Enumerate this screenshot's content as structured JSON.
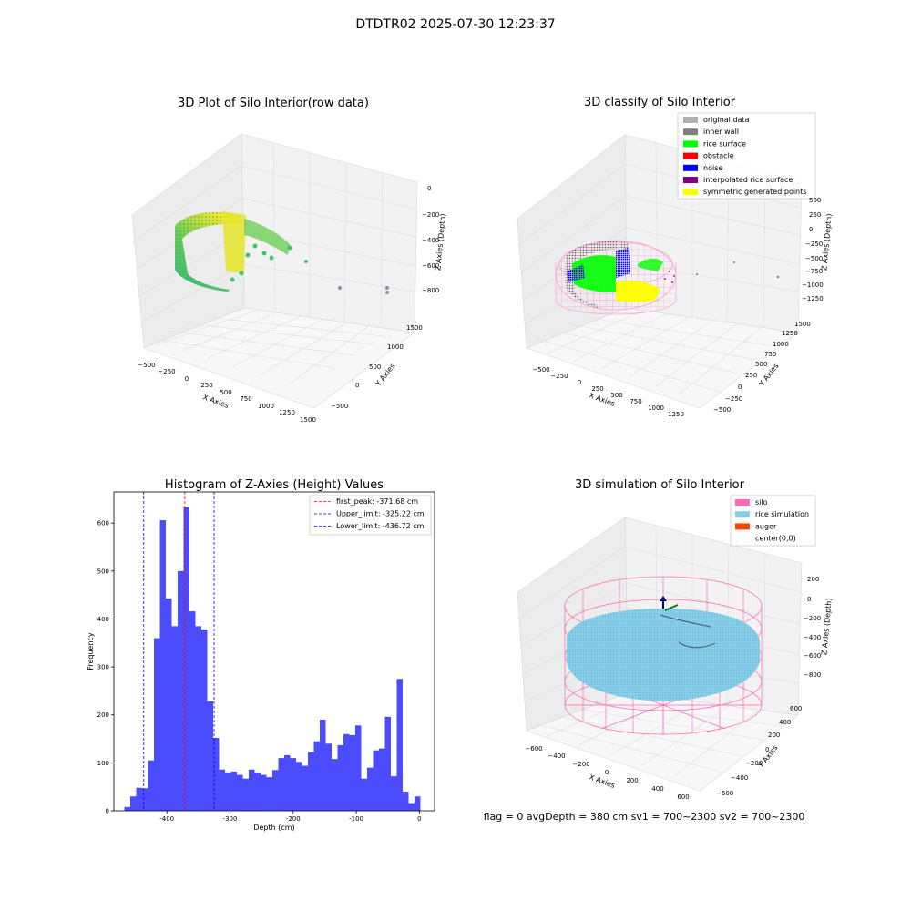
{
  "figure": {
    "suptitle": "DTDTR02 2025-07-30 12:23:37",
    "status_text": "flag = 0     avgDepth = 380 cm  sv1 = 700~2300  sv2 = 700~2300"
  },
  "chart_data": [
    {
      "type": "scatter",
      "projection": "3d",
      "title": "3D Plot of Silo Interior(row data)",
      "xlabel": "X Axies",
      "ylabel": "Y Axies",
      "zlabel": "Z Axies (Depth)",
      "x_ticks": [
        "−500",
        "−250",
        "0",
        "250",
        "500",
        "750",
        "1000",
        "1250",
        "1500"
      ],
      "y_ticks": [
        "−500",
        "0",
        "500",
        "1000",
        "1500"
      ],
      "z_ticks": [
        "0",
        "−200",
        "−400",
        "−600",
        "−800"
      ],
      "grid": true,
      "colormap": "viridis"
    },
    {
      "type": "scatter",
      "projection": "3d",
      "title": "3D classify of Silo Interior",
      "xlabel": "X Axies",
      "ylabel": "Y Axies",
      "zlabel": "Z Axies (Depth)",
      "x_ticks": [
        "−500",
        "−250",
        "0",
        "250",
        "500",
        "750",
        "1000",
        "1250"
      ],
      "y_ticks": [
        "−500",
        "−250",
        "0",
        "250",
        "500",
        "750",
        "1000",
        "1250",
        "1500"
      ],
      "z_ticks": [
        "500",
        "250",
        "0",
        "−250",
        "−500",
        "−750",
        "−1000",
        "−1250"
      ],
      "grid": true,
      "legend_position": "top-right",
      "legend": [
        {
          "label": "original data",
          "color": "#b0b0b0"
        },
        {
          "label": "inner wall",
          "color": "#808080"
        },
        {
          "label": "rice surface",
          "color": "#00ff00"
        },
        {
          "label": "obstacle",
          "color": "#ff0000"
        },
        {
          "label": "noise",
          "color": "#0000ff"
        },
        {
          "label": "interpolated rice surface",
          "color": "#800080"
        },
        {
          "label": "symmetric generated points",
          "color": "#ffff00"
        }
      ]
    },
    {
      "type": "bar",
      "title": "Histogram of Z-Axies (Height) Values",
      "xlabel": "Depth (cm)",
      "ylabel": "Frequency",
      "xlim": [
        -484,
        24
      ],
      "ylim": [
        0,
        665
      ],
      "x_ticks": [
        -400,
        -300,
        -200,
        -100,
        0
      ],
      "y_ticks": [
        0,
        100,
        200,
        300,
        400,
        500,
        600
      ],
      "bin_start": -467.4,
      "bin_width": 9.38,
      "values": [
        8,
        30,
        48,
        47,
        105,
        360,
        606,
        443,
        385,
        500,
        633,
        416,
        385,
        378,
        228,
        152,
        86,
        80,
        82,
        75,
        67,
        86,
        80,
        75,
        70,
        85,
        110,
        116,
        110,
        102,
        94,
        122,
        145,
        190,
        140,
        108,
        137,
        160,
        158,
        178,
        67,
        90,
        126,
        130,
        196,
        72,
        275,
        40,
        16,
        30
      ],
      "bar_color": "#0000ff",
      "bar_alpha": 0.7,
      "grid": false,
      "legend_position": "top-right",
      "reference_lines": [
        {
          "label": "first_peak: -371.68 cm",
          "x": -371.68,
          "color": "#ff0000"
        },
        {
          "label": "Upper_limit: -325.22 cm",
          "x": -325.22,
          "color": "#0000ff"
        },
        {
          "label": "Lower_limit: -436.72 cm",
          "x": -436.72,
          "color": "#0000ff"
        }
      ]
    },
    {
      "type": "scatter",
      "projection": "3d",
      "title": "3D simulation of Silo Interior",
      "xlabel": "X Axies",
      "ylabel": "Y Axies",
      "zlabel": "Z Axies (Depth)",
      "x_ticks": [
        "−600",
        "−400",
        "−200",
        "0",
        "200",
        "400",
        "600"
      ],
      "y_ticks": [
        "−600",
        "−400",
        "−200",
        "0",
        "200",
        "400",
        "600"
      ],
      "z_ticks": [
        "200",
        "0",
        "−200",
        "−400",
        "−600",
        "−800"
      ],
      "grid": true,
      "legend_position": "top-right",
      "legend": [
        {
          "label": "silo",
          "color": "#ff69b4"
        },
        {
          "label": "rice simulation",
          "color": "#87ceeb"
        },
        {
          "label": "auger",
          "color": "#ff4500"
        },
        {
          "label": "center(0,0)",
          "color": "none"
        }
      ]
    }
  ]
}
